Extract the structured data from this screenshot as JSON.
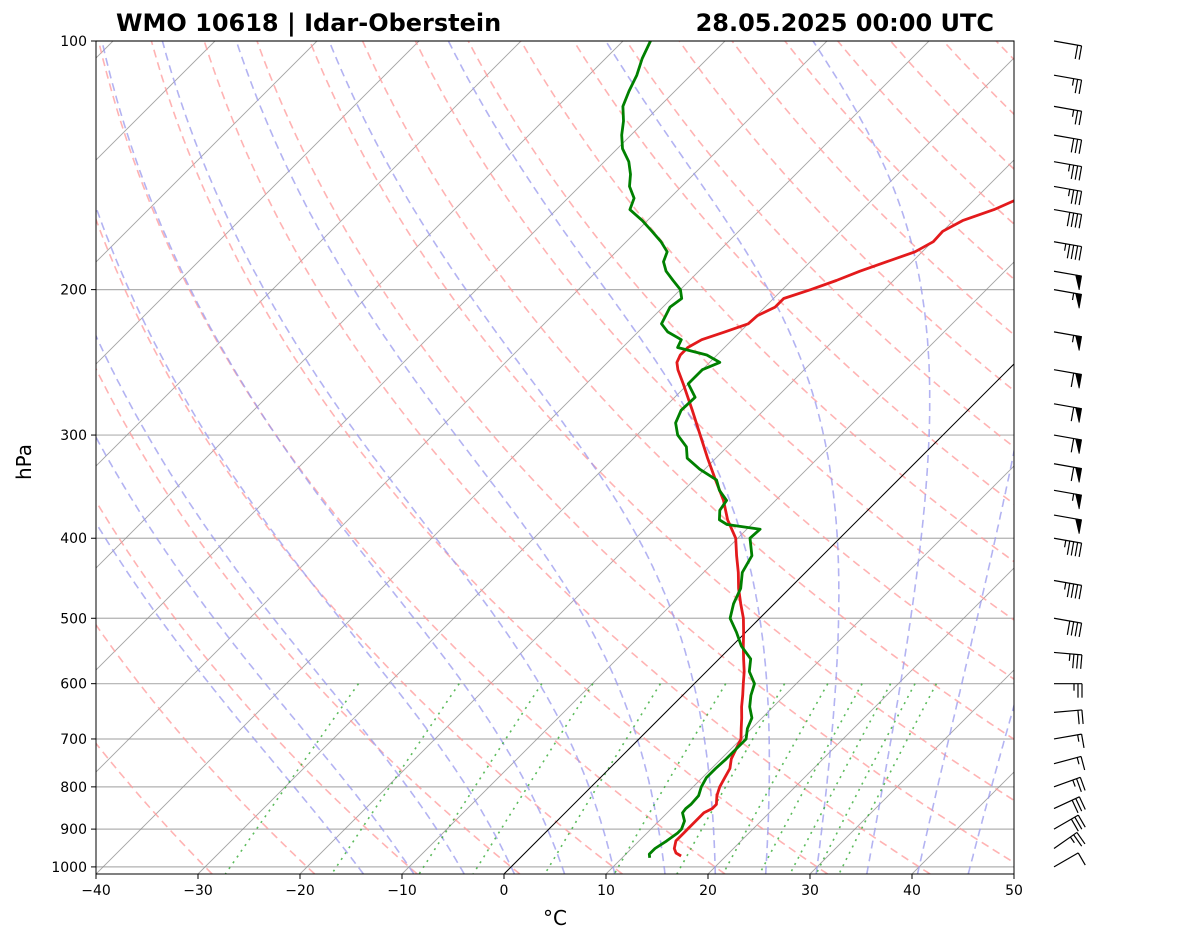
{
  "header": {
    "title_left": "WMO 10618 | Idar-Oberstein",
    "title_right": "28.05.2025 00:00 UTC"
  },
  "chart_data": {
    "type": "line",
    "subtype": "skew-T log-P diagram",
    "xlabel": "°C",
    "ylabel": "hPa",
    "xlim": [
      -40,
      50
    ],
    "ylim": [
      1020,
      100
    ],
    "yscale": "log",
    "x_ticks": [
      -40,
      -30,
      -20,
      -10,
      0,
      10,
      20,
      30,
      40,
      50
    ],
    "x_tick_labels": [
      "−40",
      "−30",
      "−20",
      "−10",
      "0",
      "10",
      "20",
      "30",
      "40",
      "50"
    ],
    "y_ticks": [
      1000,
      900,
      800,
      700,
      600,
      500,
      400,
      300,
      200,
      100
    ],
    "y_tick_labels": [
      "1000",
      "900",
      "800",
      "700",
      "600",
      "500",
      "400",
      "300",
      "200",
      "100"
    ],
    "grid": true,
    "series": [
      {
        "color": "#e31a1c",
        "pressure": [
          970,
          962,
          950,
          930,
          910,
          900,
          880,
          860,
          850,
          840,
          820,
          800,
          780,
          760,
          740,
          720,
          700,
          680,
          660,
          640,
          620,
          600,
          580,
          560,
          540,
          520,
          500,
          480,
          460,
          440,
          420,
          400,
          380,
          360,
          340,
          320,
          300,
          280,
          260,
          250,
          245,
          240,
          235,
          230,
          225,
          220,
          215,
          210,
          205,
          200,
          195,
          190,
          185,
          180,
          175,
          170,
          165,
          160,
          155,
          150,
          145,
          140,
          135,
          130,
          125,
          120,
          115,
          110,
          105,
          100
        ],
        "temperature": [
          15.6,
          14.8,
          14.2,
          13.6,
          13.6,
          13.6,
          13.6,
          13.6,
          14.0,
          14.0,
          13.2,
          12.6,
          12.2,
          11.8,
          11.0,
          10.5,
          10.0,
          9.0,
          8.0,
          6.9,
          5.9,
          4.8,
          3.7,
          2.4,
          1.1,
          -0.2,
          -1.6,
          -3.3,
          -5.0,
          -6.6,
          -8.4,
          -10.2,
          -12.8,
          -15.1,
          -17.9,
          -20.8,
          -23.8,
          -27.0,
          -30.5,
          -32.4,
          -33.2,
          -33.6,
          -33.6,
          -33.0,
          -31.5,
          -30.0,
          -29.9,
          -29.0,
          -29.0,
          -27.2,
          -25.6,
          -24.2,
          -22.5,
          -20.7,
          -19.9,
          -20.0,
          -19.1,
          -17.1,
          -15.7,
          -13.4,
          -13.4,
          -11.7,
          -11.3,
          -10.7,
          -9.7,
          -8.6,
          -6.2,
          -5.5,
          -4.8,
          -4.4
        ]
      },
      {
        "color": "#008000",
        "pressure": [
          975,
          965,
          950,
          930,
          910,
          900,
          880,
          860,
          850,
          840,
          820,
          800,
          780,
          760,
          740,
          720,
          700,
          680,
          660,
          640,
          620,
          600,
          580,
          560,
          540,
          520,
          500,
          480,
          460,
          440,
          420,
          400,
          390,
          385,
          380,
          370,
          360,
          350,
          340,
          330,
          320,
          310,
          300,
          290,
          280,
          270,
          260,
          250,
          245,
          240,
          235,
          230,
          225,
          220,
          215,
          210,
          205,
          200,
          195,
          190,
          185,
          180,
          175,
          170,
          165,
          160,
          155,
          150,
          145,
          140,
          135,
          130,
          125,
          120,
          115,
          110,
          105,
          100
        ],
        "temperature": [
          12.7,
          12.3,
          12.3,
          12.7,
          13.0,
          13.0,
          12.5,
          11.5,
          11.4,
          11.5,
          11.4,
          10.8,
          10.4,
          10.4,
          10.5,
          10.5,
          10.5,
          9.6,
          9.0,
          7.7,
          6.7,
          5.9,
          4.2,
          3.1,
          0.9,
          -0.9,
          -2.9,
          -4.0,
          -4.8,
          -6.2,
          -6.9,
          -8.8,
          -8.7,
          -12.4,
          -13.6,
          -14.5,
          -14.8,
          -16.5,
          -17.8,
          -20.5,
          -22.8,
          -24.0,
          -26.0,
          -27.4,
          -28.1,
          -28.0,
          -30.0,
          -30.0,
          -29.0,
          -31.0,
          -34.6,
          -35.0,
          -37.1,
          -38.5,
          -38.9,
          -39.3,
          -39.0,
          -40.0,
          -41.6,
          -43.2,
          -44.4,
          -45.0,
          -46.6,
          -48.5,
          -50.5,
          -52.8,
          -53.5,
          -55.1,
          -56.2,
          -57.6,
          -59.5,
          -60.9,
          -62.1,
          -63.6,
          -64.5,
          -65.3,
          -66.4,
          -67.3
        ]
      }
    ],
    "wind_barbs": [
      {
        "pressure": 1000,
        "direction": 60,
        "speed": 10
      },
      {
        "pressure": 950,
        "direction": 55,
        "speed": 25
      },
      {
        "pressure": 900,
        "direction": 60,
        "speed": 30
      },
      {
        "pressure": 850,
        "direction": 65,
        "speed": 30
      },
      {
        "pressure": 800,
        "direction": 70,
        "speed": 25
      },
      {
        "pressure": 750,
        "direction": 75,
        "speed": 15
      },
      {
        "pressure": 700,
        "direction": 80,
        "speed": 15
      },
      {
        "pressure": 650,
        "direction": 85,
        "speed": 20
      },
      {
        "pressure": 600,
        "direction": 90,
        "speed": 25
      },
      {
        "pressure": 550,
        "direction": 95,
        "speed": 35
      },
      {
        "pressure": 500,
        "direction": 100,
        "speed": 40
      },
      {
        "pressure": 450,
        "direction": 100,
        "speed": 45
      },
      {
        "pressure": 400,
        "direction": 100,
        "speed": 45
      },
      {
        "pressure": 375,
        "direction": 100,
        "speed": 50
      },
      {
        "pressure": 350,
        "direction": 100,
        "speed": 55
      },
      {
        "pressure": 325,
        "direction": 100,
        "speed": 60
      },
      {
        "pressure": 300,
        "direction": 100,
        "speed": 60
      },
      {
        "pressure": 275,
        "direction": 100,
        "speed": 60
      },
      {
        "pressure": 250,
        "direction": 100,
        "speed": 60
      },
      {
        "pressure": 225,
        "direction": 100,
        "speed": 55
      },
      {
        "pressure": 200,
        "direction": 100,
        "speed": 55
      },
      {
        "pressure": 190,
        "direction": 100,
        "speed": 50
      },
      {
        "pressure": 175,
        "direction": 100,
        "speed": 45
      },
      {
        "pressure": 160,
        "direction": 100,
        "speed": 40
      },
      {
        "pressure": 150,
        "direction": 100,
        "speed": 35
      },
      {
        "pressure": 140,
        "direction": 100,
        "speed": 35
      },
      {
        "pressure": 130,
        "direction": 100,
        "speed": 30
      },
      {
        "pressure": 120,
        "direction": 100,
        "speed": 25
      },
      {
        "pressure": 110,
        "direction": 100,
        "speed": 25
      },
      {
        "pressure": 100,
        "direction": 100,
        "speed": 20
      }
    ],
    "reference_lines": {
      "dry_adiabat_color": "#ff9999",
      "moist_adiabat_color": "#9999ee",
      "mixing_ratio_color": "#33aa33",
      "isotherm_color": "#999999",
      "zero_isotherm_color": "#000000",
      "trace_temperature_color": "#e31a1c",
      "trace_dewpoint_color": "#008000"
    }
  }
}
